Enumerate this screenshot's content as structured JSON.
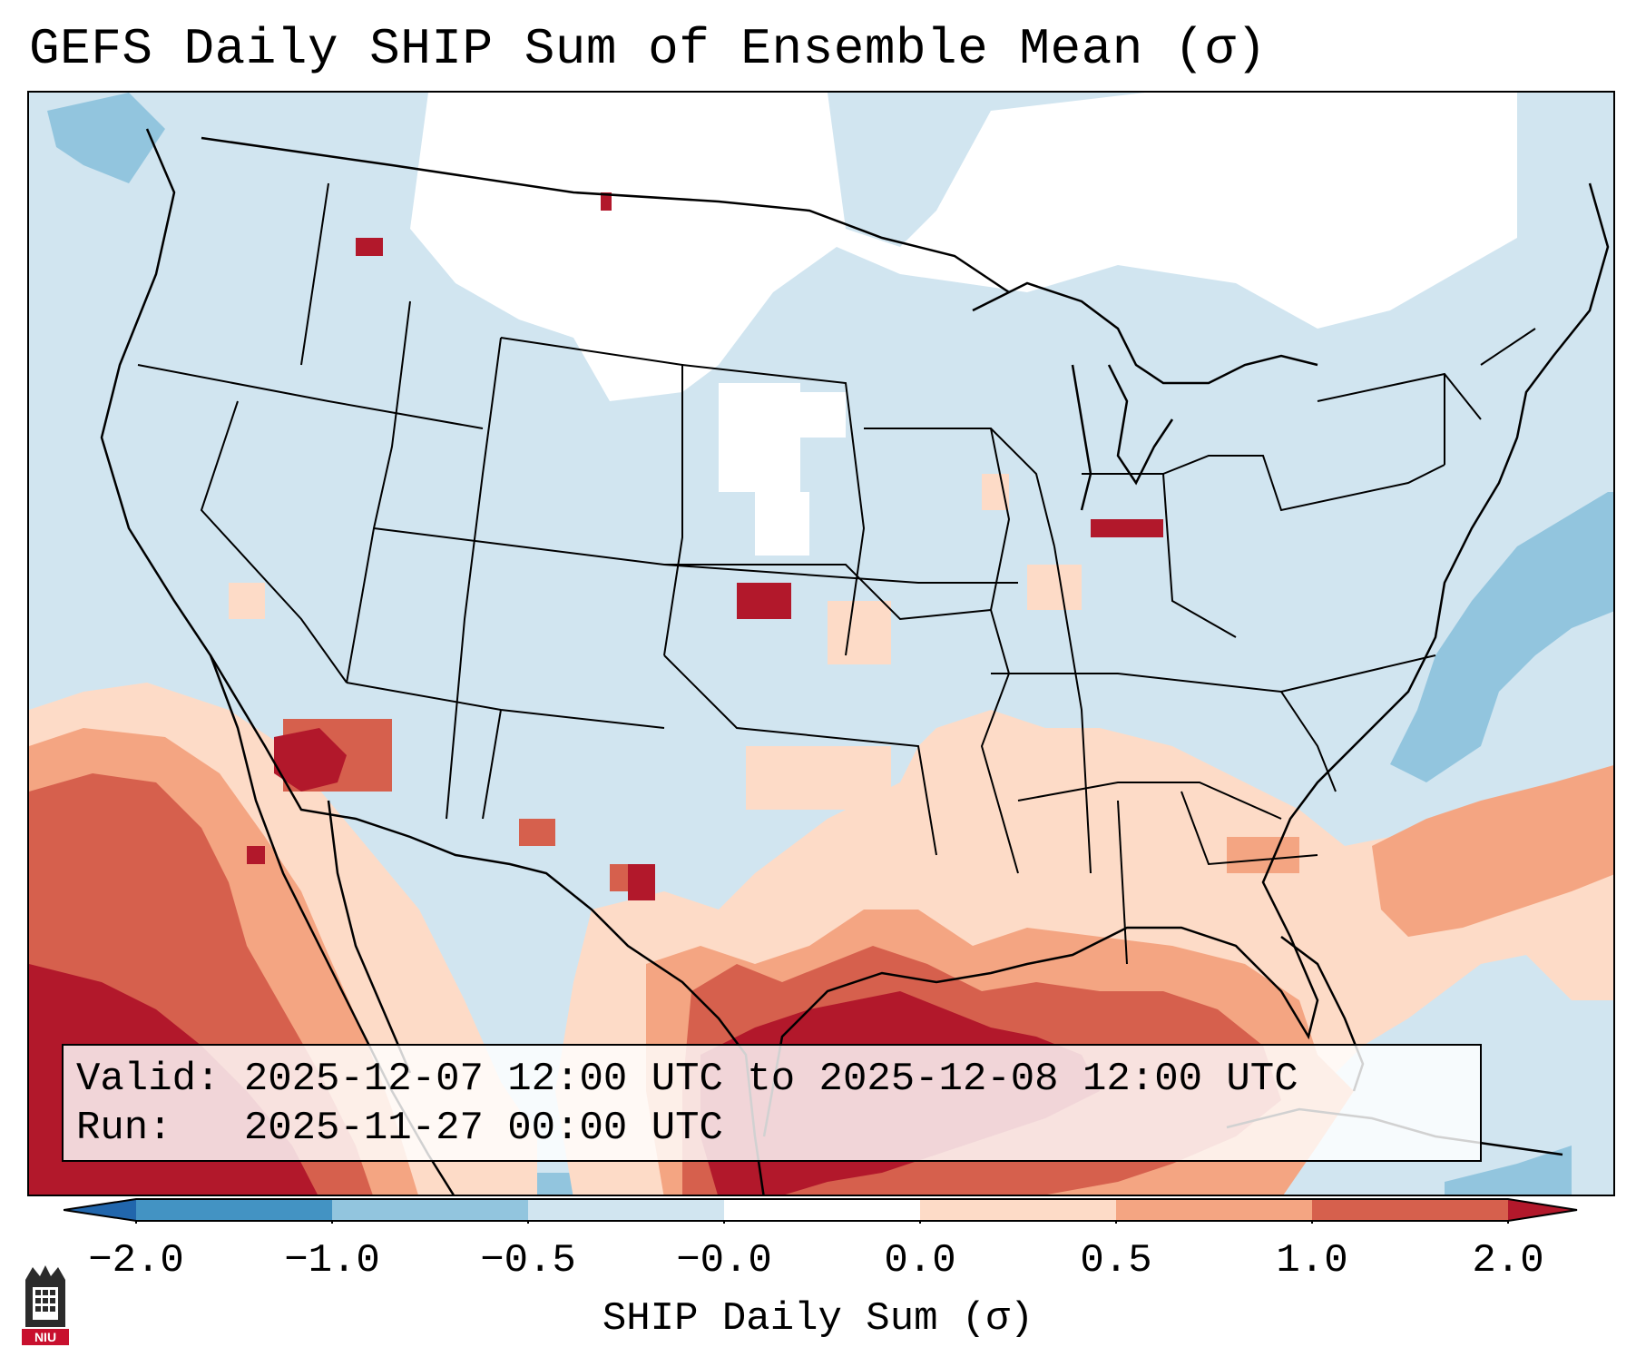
{
  "title": "GEFS Daily SHIP Sum of Ensemble Mean (σ)",
  "info": {
    "valid_line": "Valid: 2025-12-07 12:00 UTC to 2025-12-08 12:00 UTC",
    "run_line": "Run:   2025-11-27 00:00 UTC"
  },
  "colorbar": {
    "label": "SHIP Daily Sum (σ)",
    "ticks": [
      "−2.0",
      "−1.0",
      "−0.5",
      "−0.0",
      "0.0",
      "0.5",
      "1.0",
      "2.0"
    ],
    "bins": [
      {
        "range": "< -2.0",
        "color": "#2166ac"
      },
      {
        "range": "-2.0 to -1.0",
        "color": "#4393c3"
      },
      {
        "range": "-1.0 to -0.5",
        "color": "#92c5de"
      },
      {
        "range": "-0.5 to -0.0",
        "color": "#d1e5f0"
      },
      {
        "range": "-0.0 to 0.0",
        "color": "#ffffff"
      },
      {
        "range": "0.0 to 0.5",
        "color": "#fddbc7"
      },
      {
        "range": "0.5 to 1.0",
        "color": "#f4a582"
      },
      {
        "range": "1.0 to 2.0",
        "color": "#d6604d"
      },
      {
        "range": "> 2.0",
        "color": "#b2182b"
      }
    ]
  },
  "logo": {
    "text": "NIU",
    "icon": "university-tower-icon"
  }
}
